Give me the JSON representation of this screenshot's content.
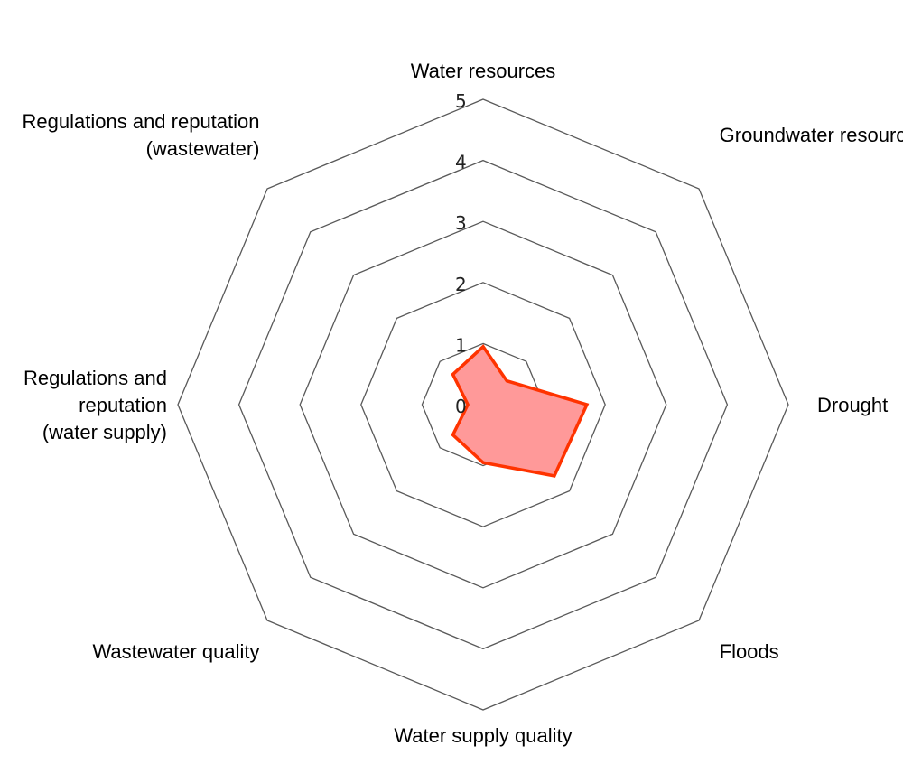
{
  "chart_data": {
    "type": "radar",
    "categories": [
      [
        "Water resources"
      ],
      [
        "Groundwater resources"
      ],
      [
        "Drought"
      ],
      [
        "Floods"
      ],
      [
        "Water supply quality"
      ],
      [
        "Wastewater quality"
      ],
      [
        "Regulations and",
        "reputation",
        "(water supply)"
      ],
      [
        "Regulations and reputation",
        "(wastewater)"
      ]
    ],
    "series": [
      {
        "values": [
          0.95,
          0.55,
          1.7,
          1.65,
          0.95,
          0.7,
          0.25,
          0.7
        ]
      }
    ],
    "rlim": [
      0,
      5
    ],
    "ticks": [
      "0",
      "1",
      "2",
      "3",
      "4",
      "5"
    ],
    "title": "",
    "grid": true,
    "colors": {
      "line": "#ff3300",
      "fill": "#ff9999",
      "grid": "#595959"
    }
  }
}
